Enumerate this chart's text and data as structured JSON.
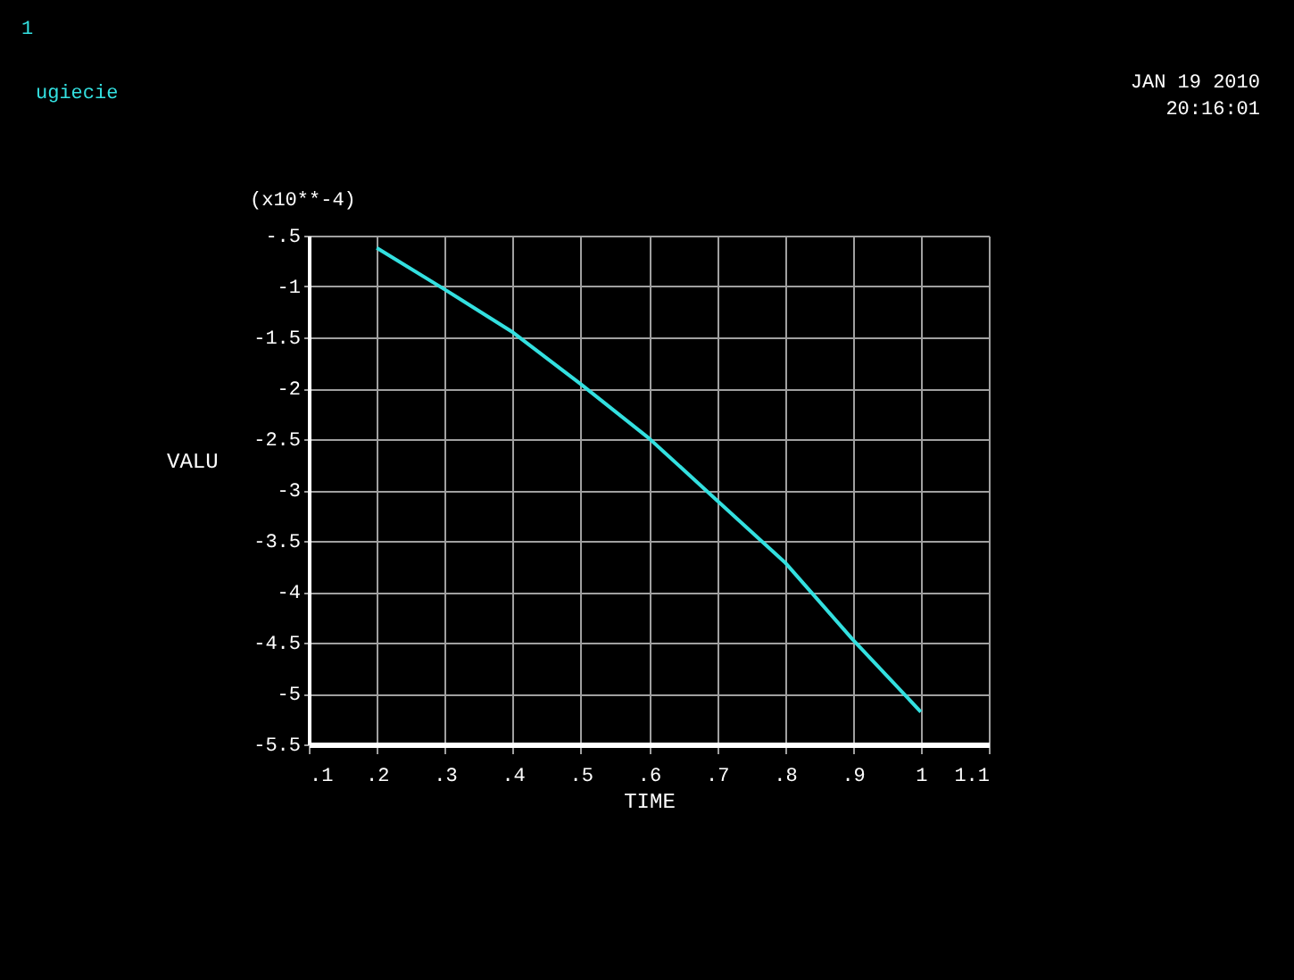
{
  "chart_data": {
    "type": "line",
    "xlabel": "TIME",
    "ylabel": "VALU",
    "annotations": [
      "1",
      "(x10**-4)",
      "JAN 19 2010",
      "20:16:01"
    ],
    "x": [
      0.2,
      0.3,
      0.4,
      0.5,
      0.6,
      0.7,
      0.8,
      0.9,
      1.0
    ],
    "series": [
      {
        "name": "ugiecie",
        "color": "#33e0e0",
        "values": [
          -0.62,
          -1.03,
          -1.45,
          -1.96,
          -2.49,
          -3.1,
          -3.71,
          -4.47,
          -5.18
        ]
      }
    ],
    "xlim": [
      0.1,
      1.1
    ],
    "ylim": [
      -5.5,
      -0.5
    ],
    "xticks": [
      {
        "value": 0.1,
        "label": ".1"
      },
      {
        "value": 0.2,
        "label": ".2"
      },
      {
        "value": 0.3,
        "label": ".3"
      },
      {
        "value": 0.4,
        "label": ".4"
      },
      {
        "value": 0.5,
        "label": ".5"
      },
      {
        "value": 0.6,
        "label": ".6"
      },
      {
        "value": 0.7,
        "label": ".7"
      },
      {
        "value": 0.8,
        "label": ".8"
      },
      {
        "value": 0.9,
        "label": ".9"
      },
      1,
      1.1
    ],
    "yticks": [
      {
        "value": -0.5,
        "label": "-.5"
      },
      -1,
      {
        "value": -1.5,
        "label": "-1.5"
      },
      -2,
      {
        "value": -2.5,
        "label": "-2.5"
      },
      -3,
      {
        "value": -3.5,
        "label": "-3.5"
      },
      -4,
      {
        "value": -4.5,
        "label": "-4.5"
      },
      -5,
      {
        "value": -5.5,
        "label": "-5.5"
      }
    ],
    "grid": true,
    "legend": "top left",
    "marker": "none",
    "line_style": "solid"
  }
}
